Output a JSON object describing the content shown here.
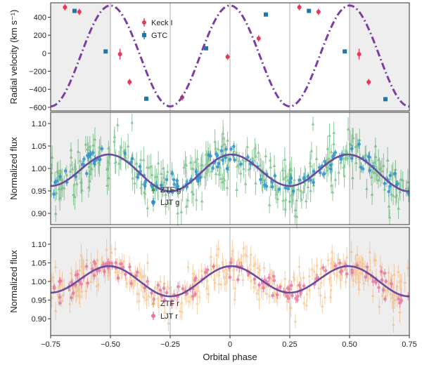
{
  "chart_data": {
    "type": "scatter",
    "xlabel": "Orbital phase",
    "xlim": [
      -0.75,
      0.75
    ],
    "xticks": [
      "−0.75",
      "−0.50",
      "−0.25",
      "0",
      "0.25",
      "0.50",
      "0.75"
    ],
    "xtick_values": [
      -0.75,
      -0.5,
      -0.25,
      0,
      0.25,
      0.5,
      0.75
    ],
    "shaded_phase_ranges": [
      [
        -0.75,
        -0.5
      ],
      [
        0.5,
        0.75
      ]
    ],
    "vertical_lines": [
      -0.5,
      -0.25,
      0,
      0.25,
      0.5
    ],
    "panels": [
      {
        "ylabel": "Radial velocity (km s⁻¹)",
        "ylim": [
          -640,
          560
        ],
        "yticks": [
          "400",
          "200",
          "0",
          "−200",
          "−400",
          "−600"
        ],
        "ytick_values": [
          400,
          200,
          0,
          -200,
          -400,
          -600
        ],
        "model": {
          "name": "",
          "amplitude": 560,
          "offset": -30,
          "style": "dash-dot",
          "color": "#7b3fa3"
        },
        "series": [
          {
            "name": "Keck I",
            "color": "#e23b5a",
            "marker": "circle",
            "x": [
              -0.69,
              -0.63,
              -0.46,
              -0.42,
              -0.2,
              -0.01,
              0.12,
              0.29,
              0.37,
              0.54,
              0.58
            ],
            "y": [
              510,
              460,
              -10,
              -320,
              -490,
              -40,
              165,
              510,
              460,
              -10,
              -320
            ],
            "err": [
              35,
              35,
              60,
              35,
              35,
              35,
              35,
              35,
              35,
              60,
              35
            ]
          },
          {
            "name": "GTC",
            "color": "#1f78a8",
            "marker": "square",
            "x": [
              -0.65,
              -0.52,
              -0.35,
              -0.1,
              0.15,
              0.33,
              0.48,
              0.65
            ],
            "y": [
              470,
              20,
              -505,
              55,
              430,
              470,
              20,
              -510
            ],
            "err": [
              12,
              12,
              12,
              12,
              12,
              12,
              12,
              12
            ]
          }
        ]
      },
      {
        "ylabel": "Normalized flux",
        "ylim": [
          0.875,
          1.125
        ],
        "yticks": [
          "1.10",
          "1.05",
          "1.00",
          "0.95",
          "0.90"
        ],
        "ytick_values": [
          1.1,
          1.05,
          1.0,
          0.95,
          0.9
        ],
        "model": {
          "mean": 0.993,
          "amp_ellipsoidal": 0.038,
          "amp_beaming": 0.006,
          "color": "#6a4c9c"
        },
        "series": [
          {
            "name": "ZTF g",
            "color": "#2e9e48",
            "marker": "triangle",
            "count": 360,
            "scatter": 0.03,
            "err": 0.025
          },
          {
            "name": "LJT g",
            "color": "#2a8fc9",
            "marker": "circle",
            "count": 150,
            "scatter": 0.012,
            "err": 0.01
          }
        ]
      },
      {
        "ylabel": "Normalized flux",
        "ylim": [
          0.855,
          1.145
        ],
        "yticks": [
          "1.10",
          "1.05",
          "1.00",
          "0.95",
          "0.90"
        ],
        "ytick_values": [
          1.1,
          1.05,
          1.0,
          0.95,
          0.9
        ],
        "model": {
          "mean": 1.003,
          "amp_ellipsoidal": 0.038,
          "amp_beaming": 0.005,
          "color": "#6a4c9c"
        },
        "series": [
          {
            "name": "ZTF r",
            "color": "#f5a95e",
            "marker": "triangle",
            "count": 360,
            "scatter": 0.032,
            "err": 0.025
          },
          {
            "name": "LJT r",
            "color": "#e6769e",
            "marker": "circle",
            "count": 150,
            "scatter": 0.014,
            "err": 0.012
          }
        ]
      }
    ]
  }
}
